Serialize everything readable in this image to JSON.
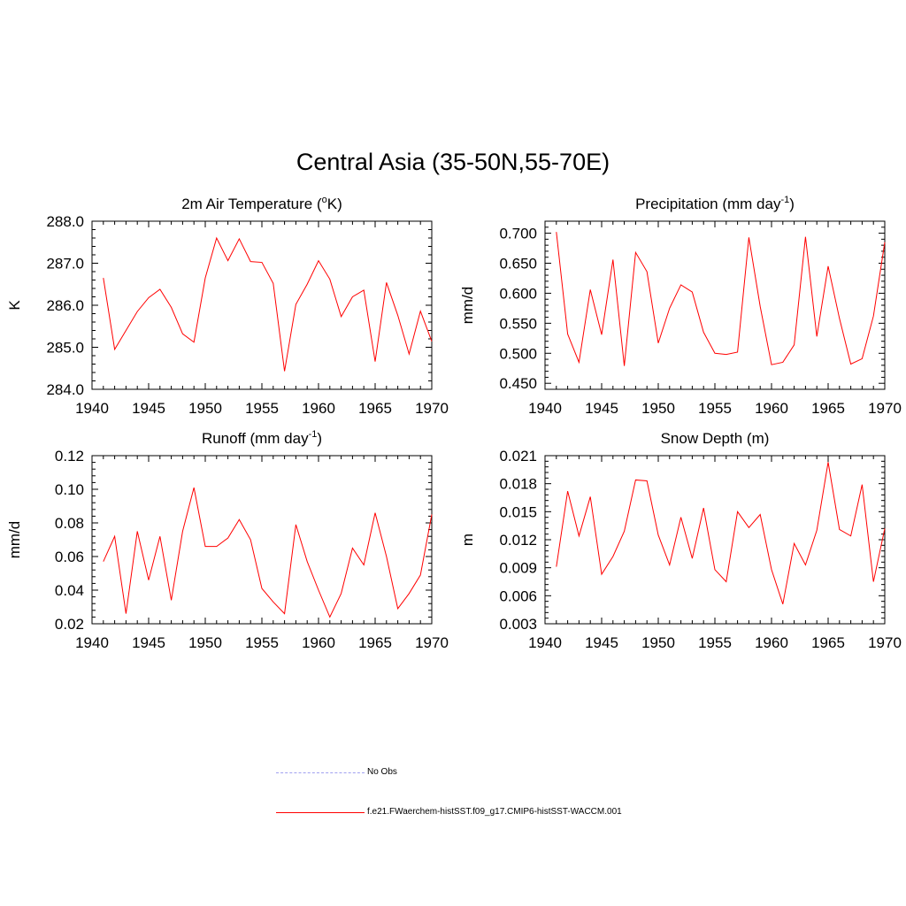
{
  "title": "Central Asia (35-50N,55-70E)",
  "colors": {
    "model": "#ff0000",
    "obs": "#a0a0f0",
    "axes": "#000000"
  },
  "legend": [
    {
      "label": "No Obs",
      "style": "dashed",
      "color": "#a0a0f0"
    },
    {
      "label": "f.e21.FWaerchem-histSST.f09_g17.CMIP6-histSST-WACCM.001",
      "style": "solid",
      "color": "#ff0000"
    }
  ],
  "chart_data": [
    {
      "type": "line",
      "title": "2m Air Temperature (",
      "title_sup": "o",
      "title_after": "K)",
      "ylabel": "K",
      "xlim": [
        1940,
        1970
      ],
      "ylim": [
        284.0,
        288.0
      ],
      "yticks": [
        "284.0",
        "285.0",
        "286.0",
        "287.0",
        "288.0"
      ],
      "xticks": [
        "1940",
        "1945",
        "1950",
        "1955",
        "1960",
        "1965",
        "1970"
      ],
      "x": [
        1941,
        1942,
        1943,
        1944,
        1945,
        1946,
        1947,
        1948,
        1949,
        1950,
        1951,
        1952,
        1953,
        1954,
        1955,
        1956,
        1957,
        1958,
        1959,
        1960,
        1961,
        1962,
        1963,
        1964,
        1965,
        1966,
        1967,
        1968,
        1969,
        1970
      ],
      "series": [
        {
          "values": [
            286.65,
            284.95,
            285.4,
            285.85,
            286.18,
            286.38,
            285.95,
            285.32,
            285.12,
            286.65,
            287.6,
            287.06,
            287.58,
            287.04,
            287.02,
            286.52,
            284.43,
            286.02,
            286.5,
            287.06,
            286.62,
            285.73,
            286.2,
            286.36,
            284.66,
            286.54,
            285.76,
            284.84,
            285.86,
            285.14
          ]
        }
      ]
    },
    {
      "type": "line",
      "title": "Precipitation (mm day",
      "title_sup": "-1",
      "title_after": ")",
      "ylabel": "mm/d",
      "xlim": [
        1940,
        1970
      ],
      "ylim": [
        0.44,
        0.72
      ],
      "yticks": [
        "0.450",
        "0.500",
        "0.550",
        "0.600",
        "0.650",
        "0.700"
      ],
      "xticks": [
        "1940",
        "1945",
        "1950",
        "1955",
        "1960",
        "1965",
        "1970"
      ],
      "x": [
        1941,
        1942,
        1943,
        1944,
        1945,
        1946,
        1947,
        1948,
        1949,
        1950,
        1951,
        1952,
        1953,
        1954,
        1955,
        1956,
        1957,
        1958,
        1959,
        1960,
        1961,
        1962,
        1963,
        1964,
        1965,
        1966,
        1967,
        1968,
        1969,
        1970
      ],
      "series": [
        {
          "values": [
            0.702,
            0.532,
            0.485,
            0.606,
            0.531,
            0.656,
            0.479,
            0.668,
            0.636,
            0.517,
            0.575,
            0.614,
            0.602,
            0.535,
            0.5,
            0.498,
            0.502,
            0.693,
            0.578,
            0.481,
            0.485,
            0.514,
            0.694,
            0.528,
            0.645,
            0.558,
            0.482,
            0.491,
            0.562,
            0.685
          ]
        }
      ]
    },
    {
      "type": "line",
      "title": "Runoff (mm day",
      "title_sup": "-1",
      "title_after": ")",
      "ylabel": "mm/d",
      "xlim": [
        1940,
        1970
      ],
      "ylim": [
        0.02,
        0.12
      ],
      "yticks": [
        "0.02",
        "0.04",
        "0.06",
        "0.08",
        "0.10",
        "0.12"
      ],
      "xticks": [
        "1940",
        "1945",
        "1950",
        "1955",
        "1960",
        "1965",
        "1970"
      ],
      "x": [
        1941,
        1942,
        1943,
        1944,
        1945,
        1946,
        1947,
        1948,
        1949,
        1950,
        1951,
        1952,
        1953,
        1954,
        1955,
        1956,
        1957,
        1958,
        1959,
        1960,
        1961,
        1962,
        1963,
        1964,
        1965,
        1966,
        1967,
        1968,
        1969,
        1970
      ],
      "series": [
        {
          "values": [
            0.057,
            0.072,
            0.026,
            0.075,
            0.046,
            0.072,
            0.034,
            0.075,
            0.101,
            0.066,
            0.066,
            0.071,
            0.082,
            0.07,
            0.041,
            0.033,
            0.026,
            0.079,
            0.057,
            0.04,
            0.024,
            0.038,
            0.065,
            0.055,
            0.086,
            0.06,
            0.029,
            0.038,
            0.049,
            0.085
          ]
        }
      ]
    },
    {
      "type": "line",
      "title": "Snow Depth (m)",
      "title_sup": "",
      "title_after": "",
      "ylabel": "m",
      "xlim": [
        1940,
        1970
      ],
      "ylim": [
        0.003,
        0.021
      ],
      "yticks": [
        "0.003",
        "0.006",
        "0.009",
        "0.012",
        "0.015",
        "0.018",
        "0.021"
      ],
      "xticks": [
        "1940",
        "1945",
        "1950",
        "1955",
        "1960",
        "1965",
        "1970"
      ],
      "x": [
        1941,
        1942,
        1943,
        1944,
        1945,
        1946,
        1947,
        1948,
        1949,
        1950,
        1951,
        1952,
        1953,
        1954,
        1955,
        1956,
        1957,
        1958,
        1959,
        1960,
        1961,
        1962,
        1963,
        1964,
        1965,
        1966,
        1967,
        1968,
        1969,
        1970
      ],
      "series": [
        {
          "values": [
            0.0091,
            0.0172,
            0.0124,
            0.0166,
            0.0083,
            0.0102,
            0.0129,
            0.0184,
            0.0183,
            0.0125,
            0.0093,
            0.0144,
            0.01,
            0.0154,
            0.0088,
            0.0075,
            0.015,
            0.0133,
            0.0147,
            0.0088,
            0.0051,
            0.0116,
            0.0093,
            0.013,
            0.0203,
            0.0131,
            0.0124,
            0.0179,
            0.0075,
            0.0132
          ]
        }
      ]
    }
  ]
}
